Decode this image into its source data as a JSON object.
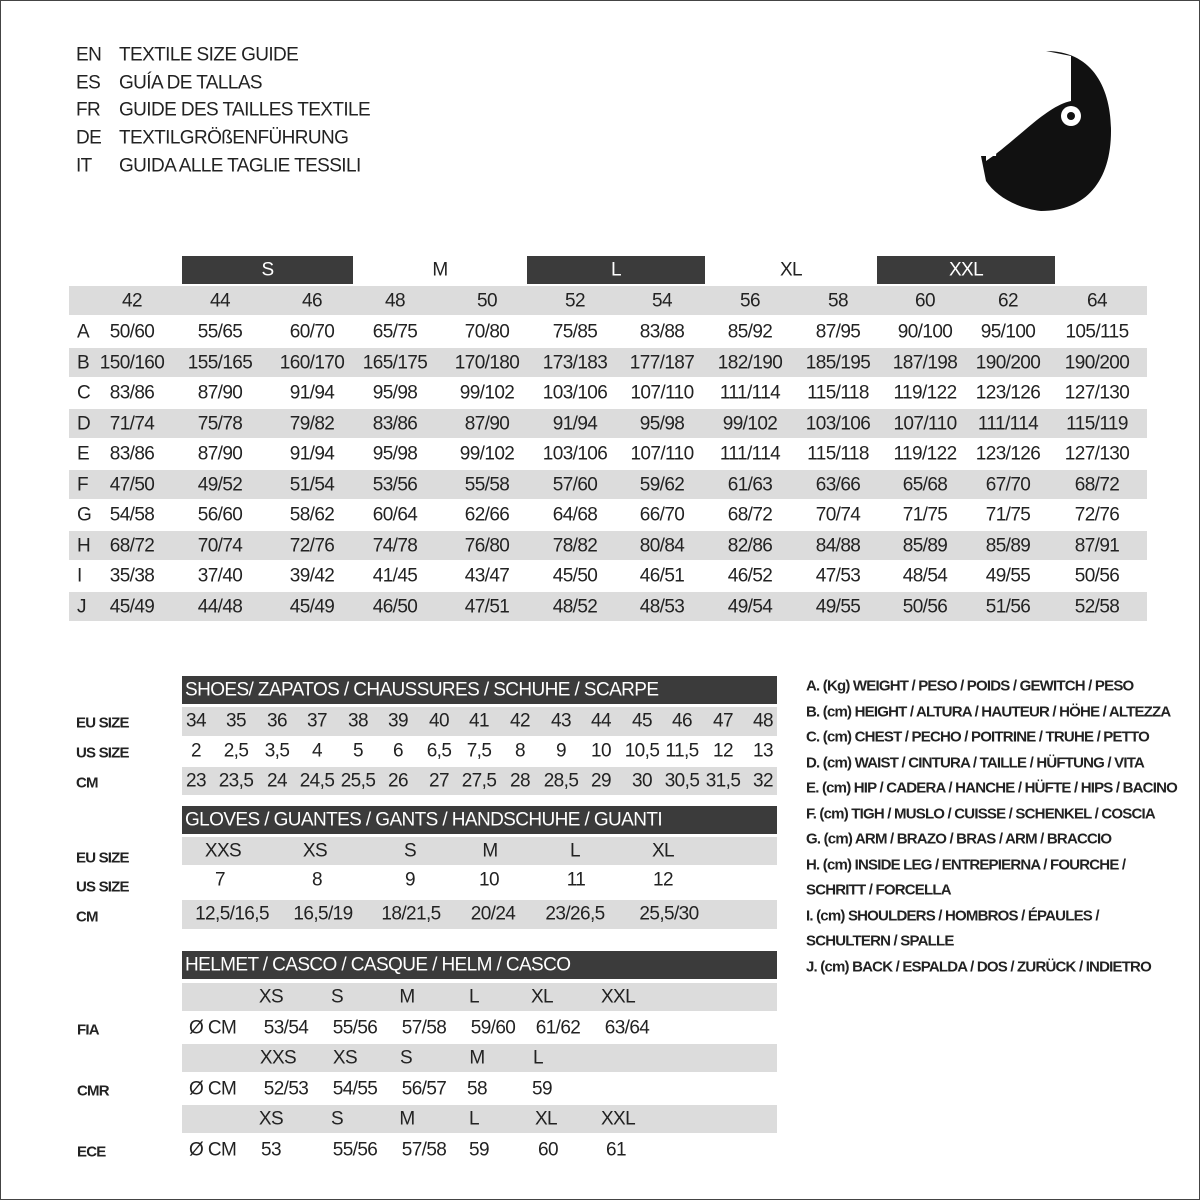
{
  "header": {
    "titles": [
      {
        "code": "EN",
        "text": "TEXTILE SIZE GUIDE"
      },
      {
        "code": "ES",
        "text": "GUÍA DE TALLAS"
      },
      {
        "code": "FR",
        "text": "GUIDE DES TAILLES TEXTILE"
      },
      {
        "code": "DE",
        "text": "TEXTILGRÖßENFÜHRUNG"
      },
      {
        "code": "IT",
        "text": "GUIDA ALLE TAGLIE TESSILI"
      }
    ]
  },
  "textile_table": {
    "size_groups": [
      "S",
      "M",
      "L",
      "XL",
      "XXL"
    ],
    "sizes": [
      "42",
      "44",
      "46",
      "48",
      "50",
      "52",
      "54",
      "56",
      "58",
      "60",
      "62",
      "64"
    ],
    "rows": [
      {
        "label": "A",
        "values": [
          "50/60",
          "55/65",
          "60/70",
          "65/75",
          "70/80",
          "75/85",
          "83/88",
          "85/92",
          "87/95",
          "90/100",
          "95/100",
          "105/115"
        ]
      },
      {
        "label": "B",
        "values": [
          "150/160",
          "155/165",
          "160/170",
          "165/175",
          "170/180",
          "173/183",
          "177/187",
          "182/190",
          "185/195",
          "187/198",
          "190/200",
          "190/200"
        ]
      },
      {
        "label": "C",
        "values": [
          "83/86",
          "87/90",
          "91/94",
          "95/98",
          "99/102",
          "103/106",
          "107/110",
          "111/114",
          "115/118",
          "119/122",
          "123/126",
          "127/130"
        ]
      },
      {
        "label": "D",
        "values": [
          "71/74",
          "75/78",
          "79/82",
          "83/86",
          "87/90",
          "91/94",
          "95/98",
          "99/102",
          "103/106",
          "107/110",
          "111/114",
          "115/119"
        ]
      },
      {
        "label": "E",
        "values": [
          "83/86",
          "87/90",
          "91/94",
          "95/98",
          "99/102",
          "103/106",
          "107/110",
          "111/114",
          "115/118",
          "119/122",
          "123/126",
          "127/130"
        ]
      },
      {
        "label": "F",
        "values": [
          "47/50",
          "49/52",
          "51/54",
          "53/56",
          "55/58",
          "57/60",
          "59/62",
          "61/63",
          "63/66",
          "65/68",
          "67/70",
          "68/72"
        ]
      },
      {
        "label": "G",
        "values": [
          "54/58",
          "56/60",
          "58/62",
          "60/64",
          "62/66",
          "64/68",
          "66/70",
          "68/72",
          "70/74",
          "71/75",
          "71/75",
          "72/76"
        ]
      },
      {
        "label": "H",
        "values": [
          "68/72",
          "70/74",
          "72/76",
          "74/78",
          "76/80",
          "78/82",
          "80/84",
          "82/86",
          "84/88",
          "85/89",
          "85/89",
          "87/91"
        ]
      },
      {
        "label": "I",
        "values": [
          "35/38",
          "37/40",
          "39/42",
          "41/45",
          "43/47",
          "45/50",
          "46/51",
          "46/52",
          "47/53",
          "48/54",
          "49/55",
          "50/56"
        ]
      },
      {
        "label": "J",
        "values": [
          "45/49",
          "44/48",
          "45/49",
          "46/50",
          "47/51",
          "48/52",
          "48/53",
          "49/54",
          "49/55",
          "50/56",
          "51/56",
          "52/58"
        ]
      }
    ]
  },
  "shoes": {
    "title": "SHOES/ ZAPATOS / CHAUSSURES / SCHUHE / SCARPE",
    "rows": [
      {
        "label": "EU SIZE",
        "values": [
          "34",
          "35",
          "36",
          "37",
          "38",
          "39",
          "40",
          "41",
          "42",
          "43",
          "44",
          "45",
          "46",
          "47",
          "48"
        ]
      },
      {
        "label": "US SIZE",
        "values": [
          "2",
          "2,5",
          "3,5",
          "4",
          "5",
          "6",
          "6,5",
          "7,5",
          "8",
          "9",
          "10",
          "10,5",
          "11,5",
          "12",
          "13"
        ]
      },
      {
        "label": "CM",
        "values": [
          "23",
          "23,5",
          "24",
          "24,5",
          "25,5",
          "26",
          "27",
          "27,5",
          "28",
          "28,5",
          "29",
          "30",
          "30,5",
          "31,5",
          "32"
        ]
      }
    ]
  },
  "gloves": {
    "title": "GLOVES / GUANTES / GANTS / HANDSCHUHE / GUANTI",
    "labels": [
      "EU SIZE",
      "US SIZE",
      "CM"
    ],
    "rows": [
      [
        "XXS",
        "XS",
        "S",
        "M",
        "L",
        "XL"
      ],
      [
        "7",
        "8",
        "9",
        "10",
        "11",
        "12"
      ],
      [
        "12,5/16,5",
        "16,5/19",
        "18/21,5",
        "20/24",
        "23/26,5",
        "25,5/30"
      ]
    ]
  },
  "helmet": {
    "title": "HELMET / CASCO / CASQUE / HELM / CASCO",
    "standards": [
      {
        "name": "FIA",
        "unit": "Ø CM",
        "sizes": [
          "XS",
          "S",
          "M",
          "L",
          "XL",
          "XXL"
        ],
        "values": [
          "53/54",
          "55/56",
          "57/58",
          "59/60",
          "61/62",
          "63/64"
        ]
      },
      {
        "name": "CMR",
        "unit": "Ø CM",
        "sizes": [
          "XXS",
          "XS",
          "S",
          "M",
          "L"
        ],
        "values": [
          "52/53",
          "54/55",
          "56/57",
          "58",
          "59"
        ]
      },
      {
        "name": "ECE",
        "unit": "Ø CM",
        "sizes": [
          "XS",
          "S",
          "M",
          "L",
          "XL",
          "XXL"
        ],
        "values": [
          "53",
          "55/56",
          "57/58",
          "59",
          "60",
          "61"
        ]
      }
    ]
  },
  "legend": [
    "A. (Kg) WEIGHT / PESO / POIDS / GEWITCH / PESO",
    "B. (cm) HEIGHT / ALTURA / HAUTEUR / HÖHE / ALTEZZA",
    "C. (cm) CHEST / PECHO / POITRINE / TRUHE / PETTO",
    "D. (cm) WAIST / CINTURA / TAILLE / HÜFTUNG / VITA",
    "E. (cm) HIP / CADERA / HANCHE / HÜFTE / HIPS /  BACINO",
    "F.  (cm) TIGH / MUSLO / CUISSE / SCHENKEL / COSCIA",
    "G. (cm) ARM  / BRAZO / BRAS / ARM / BRACCIO",
    "H. (cm) INSIDE LEG / ENTREPIERNA / FOURCHE /",
    "SCHRITT / FORCELLA",
    "I.  (cm) SHOULDERS / HOMBROS / ÉPAULES /",
    "SCHULTERN / SPALLE",
    "J. (cm) BACK / ESPALDA / DOS / ZURÜCK / INDIETRO"
  ]
}
